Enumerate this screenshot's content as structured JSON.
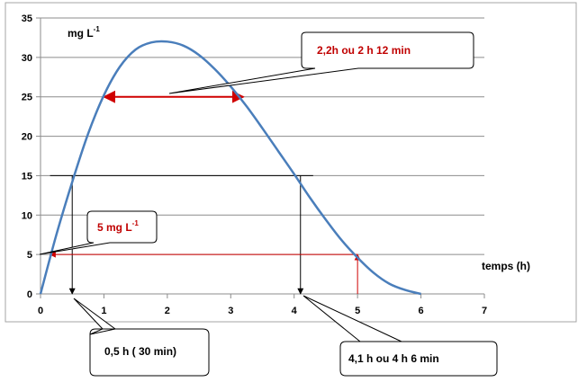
{
  "chart_data": {
    "type": "line",
    "xlim": [
      0,
      7
    ],
    "ylim": [
      0,
      35
    ],
    "x_ticks": [
      0,
      1,
      2,
      3,
      4,
      5,
      6,
      7
    ],
    "y_ticks": [
      0,
      5,
      10,
      15,
      20,
      25,
      30,
      35
    ],
    "grid": "horizontal",
    "xlabel": "temps (h)",
    "ylabel": "mg L",
    "ylabel_sup": "-1",
    "series": [
      {
        "color": "#4a7ebb",
        "x": [
          0,
          0.25,
          0.5,
          0.75,
          1,
          1.25,
          1.5,
          1.75,
          2,
          2.25,
          2.5,
          2.75,
          3,
          3.25,
          3.5,
          3.75,
          4,
          4.25,
          4.5,
          4.75,
          5,
          5.25,
          5.5,
          5.75,
          6
        ],
        "y": [
          0,
          7.5,
          14.2,
          20.3,
          25.2,
          28.8,
          31.0,
          31.9,
          32.0,
          31.5,
          30.3,
          28.5,
          26.3,
          23.8,
          21.0,
          18.1,
          15.2,
          12.2,
          9.4,
          6.8,
          4.6,
          2.7,
          1.3,
          0.5,
          0
        ]
      }
    ],
    "annotations": {
      "arrow_red_25": {
        "x1": 1,
        "x2": 3.2,
        "y": 25,
        "color": "#d00000"
      },
      "line_15": {
        "x1": 0.15,
        "x2": 4.3,
        "y": 15,
        "color": "#000000"
      },
      "drop_left": {
        "x": 0.5,
        "y_from": 15,
        "y_to": 0
      },
      "drop_right": {
        "x": 4.1,
        "y_from": 15,
        "y_to": 0
      },
      "line_5": {
        "x1": 0.15,
        "x2": 5,
        "y": 5,
        "color": "#d00000"
      },
      "rise_5": {
        "x": 5,
        "y_from": 0,
        "y_to": 5,
        "color": "#d00000"
      }
    },
    "callouts": [
      {
        "text": "2,2h ou 2 h 12 min",
        "color": "#c00000",
        "sup": ""
      },
      {
        "text": "5 mg L",
        "color": "#c00000",
        "sup": "-1"
      },
      {
        "text": "0,5 h ( 30 min)",
        "color": "#000000",
        "sup": ""
      },
      {
        "text": "4,1 h ou 4 h 6 min",
        "color": "#000000",
        "sup": ""
      }
    ]
  }
}
